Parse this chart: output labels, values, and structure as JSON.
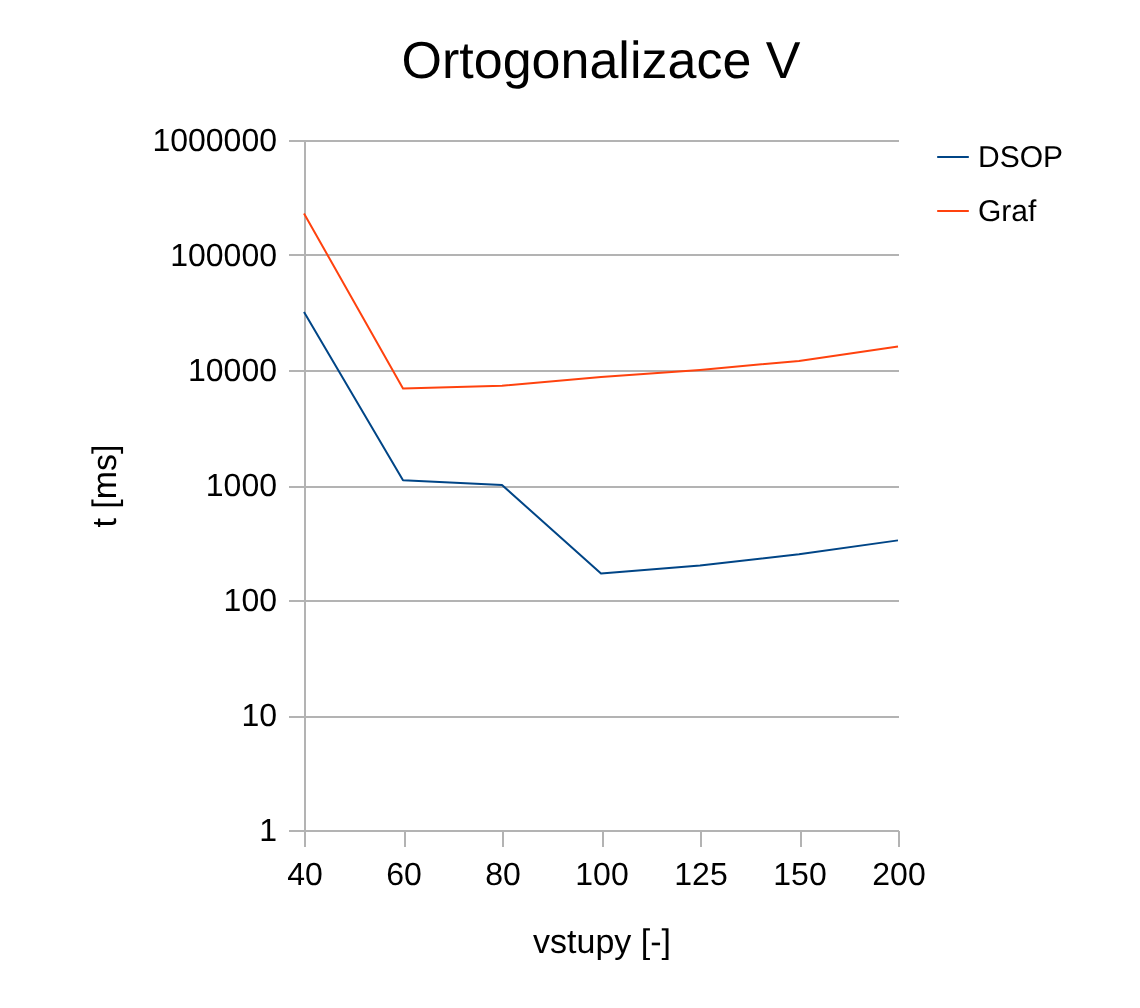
{
  "chart_data": {
    "type": "line",
    "title": "Ortogonalizace V",
    "xlabel": "vstupy [-]",
    "ylabel": "t [ms]",
    "categories": [
      "40",
      "60",
      "80",
      "100",
      "125",
      "150",
      "200"
    ],
    "series": [
      {
        "name": "DSOP",
        "color": "#004586",
        "values": [
          32000,
          1100,
          1000,
          170,
          200,
          250,
          330
        ]
      },
      {
        "name": "Graf",
        "color": "#ff420e",
        "values": [
          230000,
          6900,
          7300,
          8700,
          10000,
          12000,
          16000
        ]
      }
    ],
    "log": "y",
    "ylim": [
      1,
      1000000
    ],
    "yticks": [
      1,
      10,
      100,
      1000,
      10000,
      100000,
      1000000
    ],
    "grid": "y",
    "legend": "right",
    "marker": "none",
    "line_style": "solid"
  }
}
